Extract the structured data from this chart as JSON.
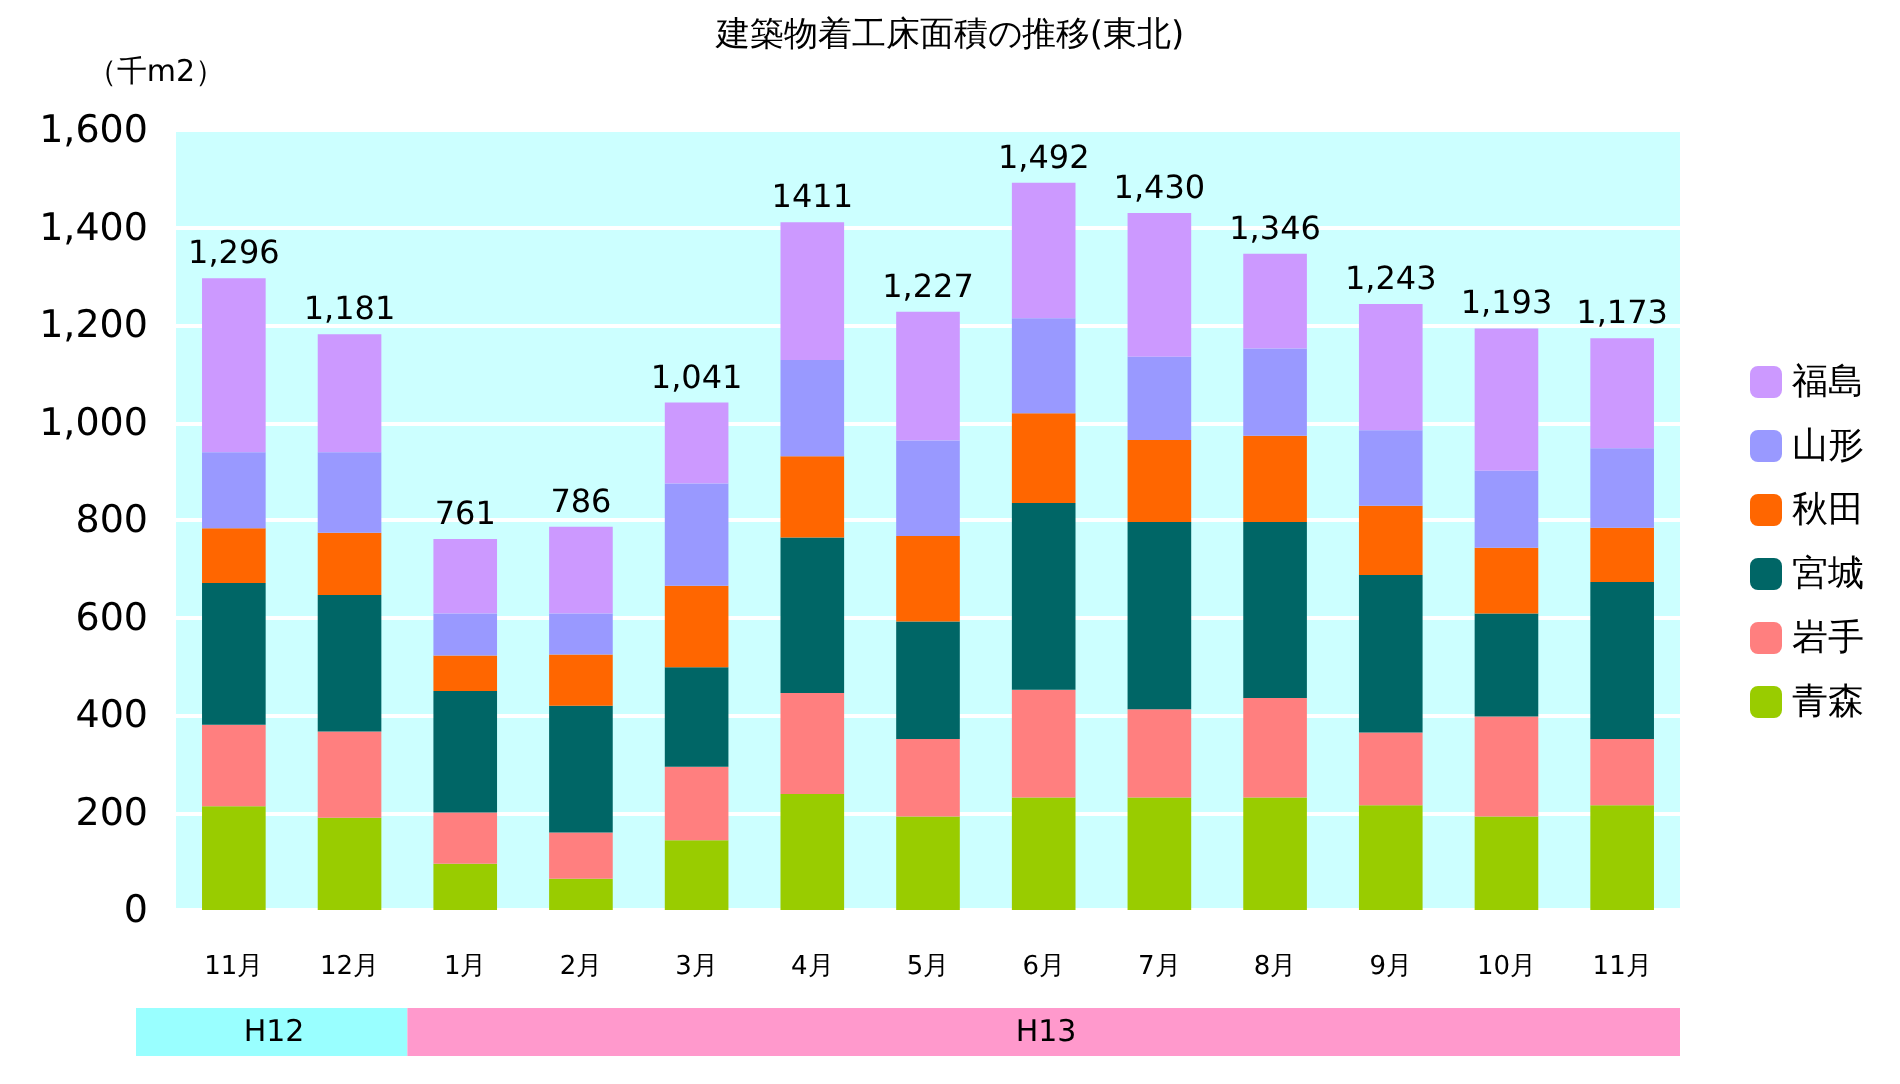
{
  "chart_data": {
    "type": "bar",
    "stacked": true,
    "title": "建築物着工床面積の推移(東北)",
    "ylabel": "（千m2）",
    "categories": [
      "11月",
      "12月",
      "1月",
      "2月",
      "3月",
      "4月",
      "5月",
      "6月",
      "7月",
      "8月",
      "9月",
      "10月",
      "11月"
    ],
    "series": [
      {
        "name": "青森",
        "color": "#99cc00",
        "values": [
          213,
          189,
          95,
          64,
          143,
          238,
          192,
          231,
          231,
          231,
          215,
          192,
          215
        ]
      },
      {
        "name": "岩手",
        "color": "#ff7f7f",
        "values": [
          167,
          177,
          105,
          95,
          151,
          207,
          159,
          221,
          181,
          204,
          149,
          205,
          136
        ]
      },
      {
        "name": "宮城",
        "color": "#006666",
        "values": [
          291,
          280,
          249,
          260,
          204,
          319,
          241,
          383,
          384,
          361,
          323,
          211,
          322
        ]
      },
      {
        "name": "秋田",
        "color": "#ff6600",
        "values": [
          112,
          128,
          73,
          105,
          167,
          167,
          175,
          184,
          168,
          177,
          142,
          135,
          111
        ]
      },
      {
        "name": "山形",
        "color": "#9999ff",
        "values": [
          156,
          165,
          86,
          84,
          210,
          197,
          196,
          195,
          171,
          179,
          155,
          158,
          163
        ]
      },
      {
        "name": "福島",
        "color": "#cc99ff",
        "values": [
          357,
          242,
          153,
          178,
          166,
          283,
          264,
          278,
          295,
          194,
          259,
          292,
          226
        ]
      }
    ],
    "totals": [
      "1,296",
      "1,181",
      "761",
      "786",
      "1,041",
      "1411",
      "1,227",
      "1,492",
      "1,430",
      "1,346",
      "1,243",
      "1,193",
      "1,173"
    ],
    "ylim": [
      0,
      1600
    ],
    "yticks": [
      {
        "value": 0,
        "label": "0"
      },
      {
        "value": 200,
        "label": "200"
      },
      {
        "value": 400,
        "label": "400"
      },
      {
        "value": 600,
        "label": "600"
      },
      {
        "value": 800,
        "label": "800"
      },
      {
        "value": 1000,
        "label": "1,000"
      },
      {
        "value": 1200,
        "label": "1,200"
      },
      {
        "value": 1400,
        "label": "1,400"
      },
      {
        "value": 1600,
        "label": "1,600"
      }
    ],
    "grid": "y",
    "legend": "right",
    "annotations": [
      "H12",
      "H13"
    ]
  }
}
